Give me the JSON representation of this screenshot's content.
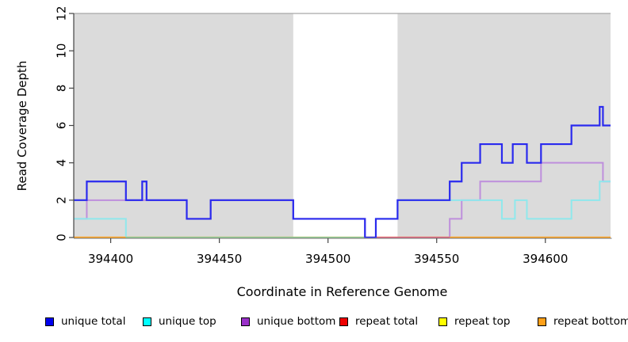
{
  "figure": {
    "xlabel": "Coordinate in Reference Genome",
    "ylabel": "Read Coverage Depth"
  },
  "chart_data": {
    "type": "line",
    "subtype": "step",
    "title": "",
    "xlabel": "Coordinate in Reference Genome",
    "ylabel": "Read Coverage Depth",
    "xlim": [
      394383,
      394630
    ],
    "ylim": [
      0,
      12
    ],
    "xticks": [
      394400,
      394450,
      394500,
      394550,
      394600
    ],
    "yticks": [
      0,
      2,
      4,
      6,
      8,
      10,
      12
    ],
    "grid": false,
    "legend_position": "bottom",
    "background_bands": {
      "color": "#dbdbdb",
      "top_border_color": "#a6a6a6",
      "regions": [
        [
          394383,
          394484
        ],
        [
          394532,
          394630
        ]
      ]
    },
    "series": [
      {
        "name": "unique total",
        "legend_color": "#0000ee",
        "line_color": "#2a2aee",
        "line_width": 2.2,
        "step_points": [
          [
            394383,
            2
          ],
          [
            394389,
            3
          ],
          [
            394407,
            2
          ],
          [
            394414.5,
            3
          ],
          [
            394416.5,
            2
          ],
          [
            394435,
            1
          ],
          [
            394446,
            2
          ],
          [
            394484,
            1
          ],
          [
            394517,
            0
          ],
          [
            394522,
            1
          ],
          [
            394532,
            2
          ],
          [
            394556,
            3
          ],
          [
            394561.5,
            4
          ],
          [
            394570,
            5
          ],
          [
            394580,
            4
          ],
          [
            394585,
            5
          ],
          [
            394591.5,
            4
          ],
          [
            394598,
            5
          ],
          [
            394612,
            6
          ],
          [
            394625,
            7
          ],
          [
            394626.5,
            6
          ]
        ]
      },
      {
        "name": "unique top",
        "legend_color": "#00ffff",
        "line_color": "#8fe8ec",
        "line_width": 2,
        "step_points": [
          [
            394383,
            1
          ],
          [
            394407,
            0
          ],
          [
            394522,
            1
          ],
          [
            394532,
            2
          ],
          [
            394580,
            1
          ],
          [
            394586,
            2
          ],
          [
            394591.5,
            1
          ],
          [
            394612,
            2
          ],
          [
            394625,
            3
          ]
        ]
      },
      {
        "name": "unique bottom",
        "legend_color": "#9a30c9",
        "line_color": "#be8fdc",
        "line_width": 2,
        "step_points": [
          [
            394383,
            1
          ],
          [
            394389,
            2
          ],
          [
            394435,
            1
          ],
          [
            394446,
            2
          ],
          [
            394484,
            1
          ],
          [
            394517,
            0
          ],
          [
            394556,
            1
          ],
          [
            394561.5,
            2
          ],
          [
            394570,
            3
          ],
          [
            394598,
            4
          ],
          [
            394626.5,
            3
          ]
        ]
      },
      {
        "name": "repeat total",
        "legend_color": "#ee0000",
        "line_color": "#ee0000",
        "line_width": 1.5,
        "step_points": [
          [
            394383,
            0
          ]
        ]
      },
      {
        "name": "repeat top",
        "legend_color": "#ffff00",
        "line_color": "#ffff00",
        "line_width": 1.5,
        "step_points": [
          [
            394383,
            0
          ]
        ]
      },
      {
        "name": "repeat bottom",
        "legend_color": "#ffa019",
        "line_color": "#ffa019",
        "line_width": 2.2,
        "step_points": [
          [
            394383,
            0
          ]
        ]
      }
    ],
    "baseline_overlay_segments": [
      {
        "from": 394383,
        "to": 394407,
        "color": "#ffa019"
      },
      {
        "from": 394407,
        "to": 394520,
        "color": "#8fcd8f"
      },
      {
        "from": 394520,
        "to": 394556,
        "color": "#e0607a"
      },
      {
        "from": 394556,
        "to": 394630,
        "color": "#ffa019"
      }
    ]
  }
}
